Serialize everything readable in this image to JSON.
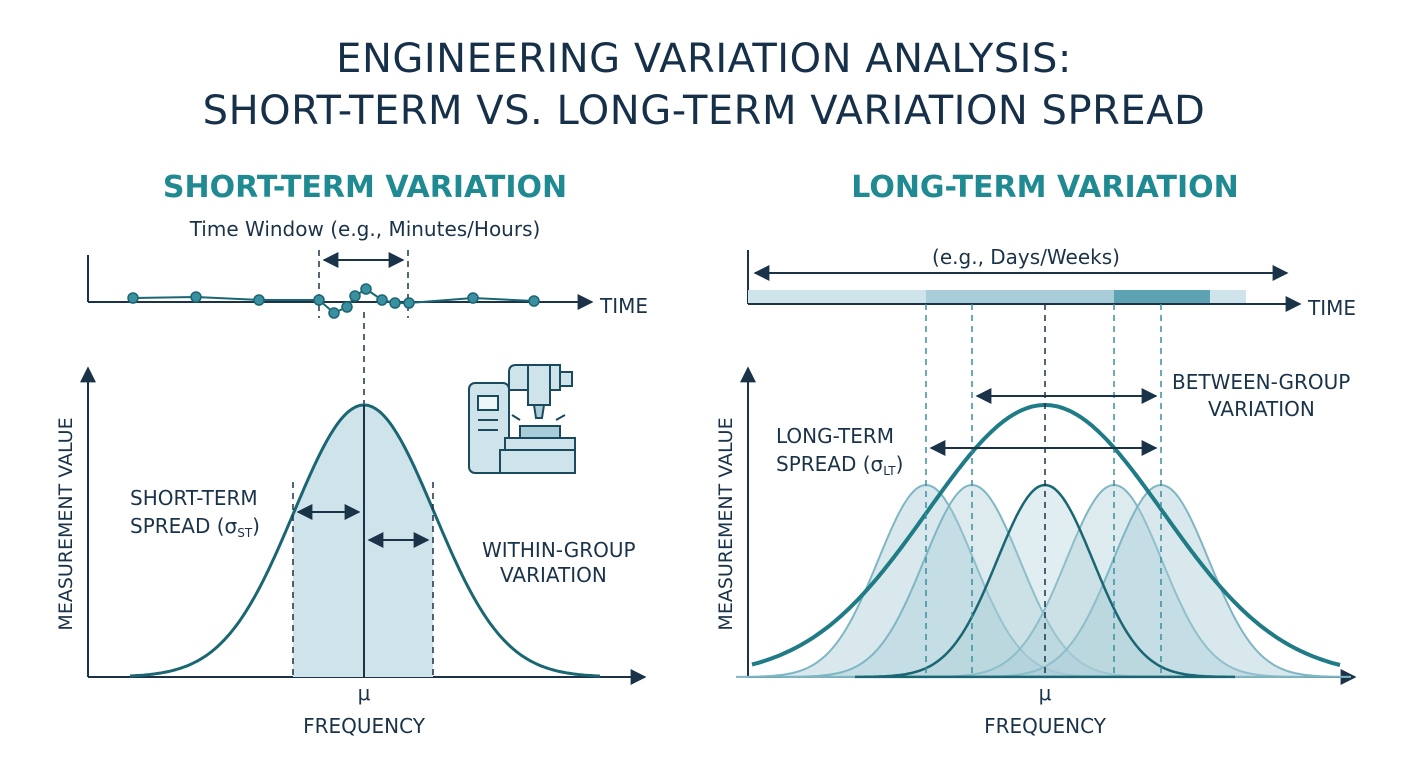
{
  "title": {
    "line1": "ENGINEERING VARIATION ANALYSIS:",
    "line2": "SHORT-TERM VS. LONG-TERM VARIATION SPREAD"
  },
  "left_panel": {
    "title": "SHORT-TERM VARIATION",
    "time_window_label": "Time Window (e.g., Minutes/Hours)",
    "time_axis_label": "TIME",
    "y_axis_label": "MEASUREMENT VALUE",
    "x_axis_label": "FREQUENCY",
    "mu_label": "μ",
    "spread_label_line1": "SHORT-TERM",
    "spread_label_line2": "SPREAD (σ",
    "spread_label_sub": "ST",
    "spread_label_close": ")",
    "within_label_line1": "WITHIN-GROUP",
    "within_label_line2": "VARIATION",
    "machine_icon": "cnc-machine-icon"
  },
  "right_panel": {
    "title": "LONG-TERM VARIATION",
    "time_window_label": "(e.g., Days/Weeks)",
    "time_axis_label": "TIME",
    "y_axis_label": "MEASUREMENT VALUE",
    "x_axis_label": "FREQUENCY",
    "mu_label": "μ",
    "spread_label_line1": "LONG-TERM",
    "spread_label_line2": "SPREAD (σ",
    "spread_label_sub": "LT",
    "spread_label_close": ")",
    "between_label_line1": "BETWEEN-GROUP",
    "between_label_line2": "VARIATION"
  },
  "colors": {
    "dark": "#1b3348",
    "teal": "#1f8a91",
    "teal_dark": "#1a6672",
    "fill_light": "#cfe3ea",
    "fill_mid": "#a9cdd8"
  }
}
